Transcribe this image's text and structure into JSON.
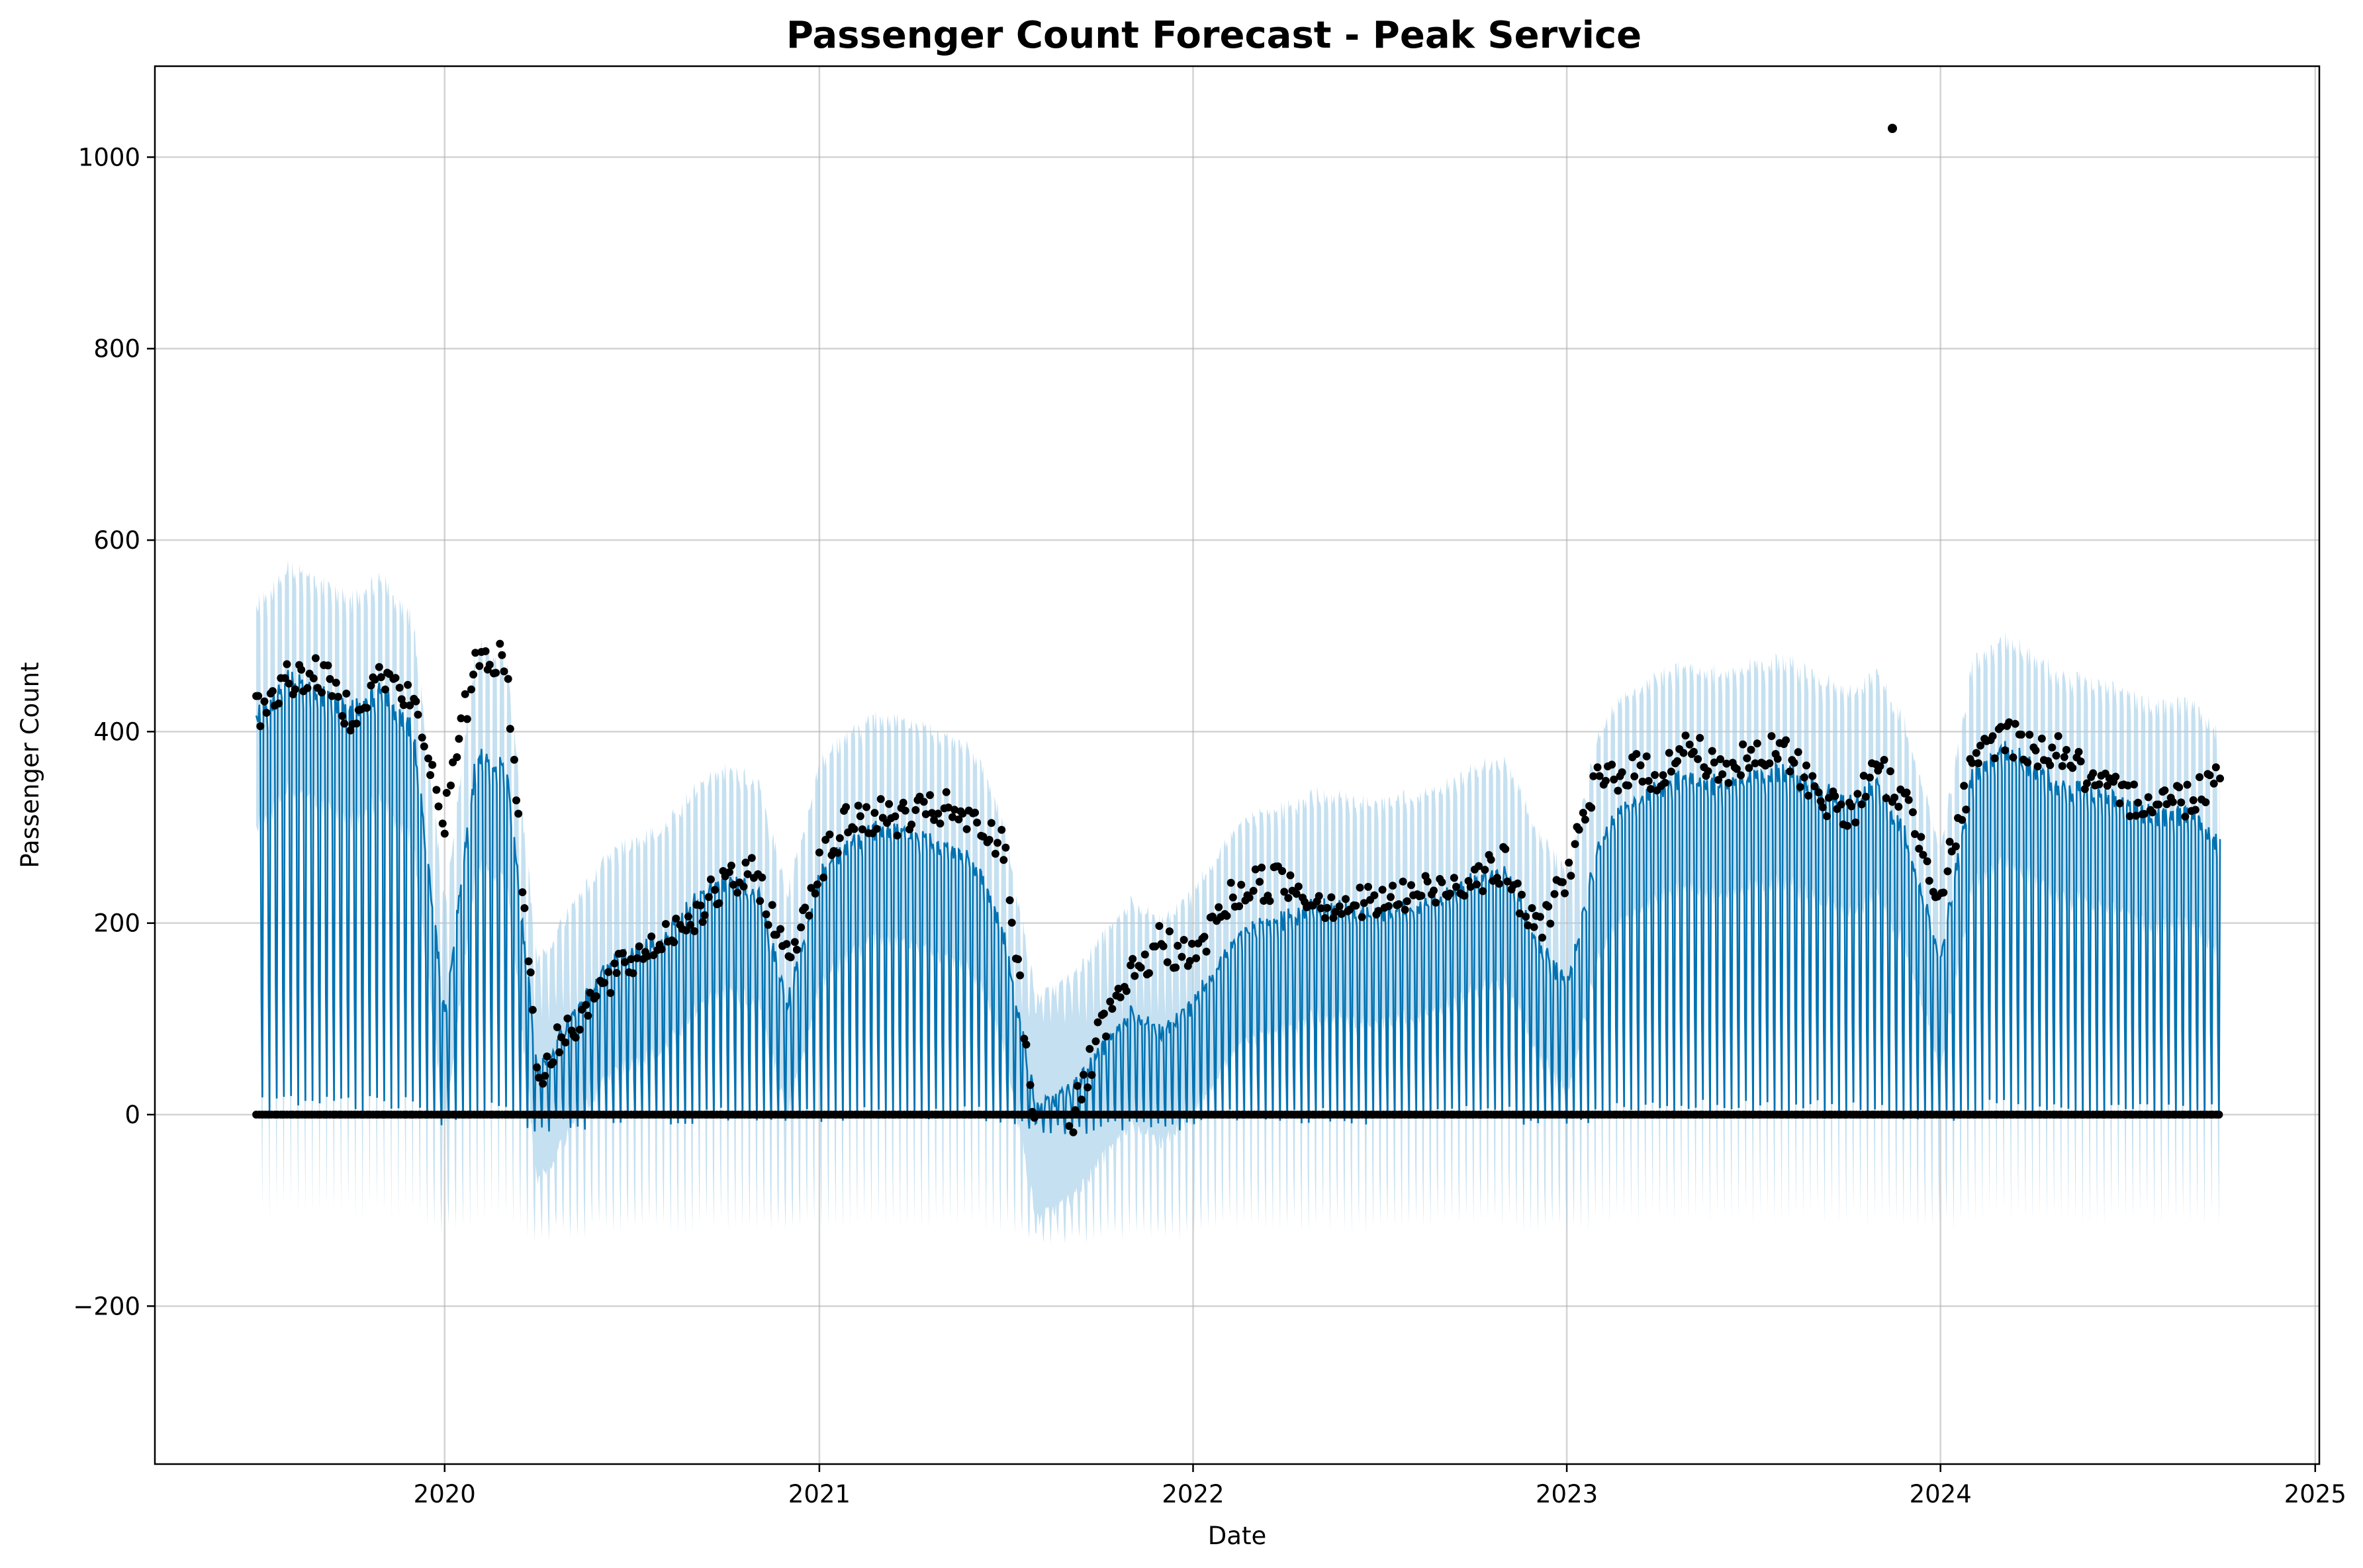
{
  "chart_data": {
    "type": "line",
    "title": "Passenger Count Forecast - Peak Service",
    "xlabel": "Date",
    "ylabel": "Passenger Count",
    "x_range": [
      "2019-03-24",
      "2025-01-05"
    ],
    "ylim": [
      -365,
      1095
    ],
    "x_ticks": [
      "2020-01-01",
      "2021-01-01",
      "2022-01-01",
      "2023-01-01",
      "2024-01-01",
      "2025-01-01"
    ],
    "x_tick_labels": [
      "2020",
      "2021",
      "2022",
      "2023",
      "2024",
      "2025"
    ],
    "y_ticks": [
      -200,
      0,
      200,
      400,
      600,
      800,
      1000
    ],
    "y_tick_labels": [
      "−200",
      "0",
      "200",
      "400",
      "600",
      "800",
      "1000"
    ],
    "grid": true,
    "legend": "none",
    "data_start": "2019-07-01",
    "data_end": "2024-09-30",
    "colors": {
      "forecast_line": "#0072B2",
      "interval_band": "#A6CFE8",
      "observed_points": "#000000",
      "grid": "#b0b0b0"
    },
    "series": [
      {
        "name": "forecast_weekday_level",
        "kind": "monthly",
        "x": [
          "2019-07-01",
          "2019-08-01",
          "2019-09-01",
          "2019-10-01",
          "2019-11-01",
          "2019-12-01",
          "2020-01-01",
          "2020-02-01",
          "2020-03-01",
          "2020-04-01",
          "2020-05-01",
          "2020-06-01",
          "2020-07-01",
          "2020-08-01",
          "2020-09-01",
          "2020-10-01",
          "2020-11-01",
          "2020-12-01",
          "2021-01-01",
          "2021-02-01",
          "2021-03-01",
          "2021-04-01",
          "2021-05-01",
          "2021-06-01",
          "2021-07-01",
          "2021-08-01",
          "2021-09-01",
          "2021-10-01",
          "2021-11-01",
          "2021-12-01",
          "2022-01-01",
          "2022-02-01",
          "2022-03-01",
          "2022-04-01",
          "2022-05-01",
          "2022-06-01",
          "2022-07-01",
          "2022-08-01",
          "2022-09-01",
          "2022-10-01",
          "2022-11-01",
          "2022-12-01",
          "2023-01-01",
          "2023-02-01",
          "2023-03-01",
          "2023-04-01",
          "2023-05-01",
          "2023-06-01",
          "2023-07-01",
          "2023-08-01",
          "2023-09-01",
          "2023-10-01",
          "2023-11-01",
          "2023-12-01",
          "2024-01-01",
          "2024-02-01",
          "2024-03-01",
          "2024-04-01",
          "2024-05-01",
          "2024-06-01",
          "2024-07-01",
          "2024-08-01",
          "2024-09-01",
          "2024-09-30"
        ],
        "values": [
          430,
          475,
          460,
          440,
          460,
          420,
          120,
          390,
          380,
          60,
          110,
          160,
          185,
          200,
          240,
          260,
          250,
          130,
          270,
          300,
          320,
          310,
          300,
          280,
          200,
          20,
          40,
          80,
          120,
          100,
          130,
          190,
          210,
          220,
          235,
          230,
          225,
          235,
          240,
          260,
          270,
          200,
          150,
          300,
          340,
          360,
          370,
          360,
          370,
          375,
          360,
          340,
          360,
          300,
          180,
          370,
          400,
          380,
          360,
          350,
          340,
          330,
          330,
          300
        ]
      },
      {
        "name": "observed_weekday",
        "kind": "monthly",
        "x": [
          "2019-07-01",
          "2019-08-01",
          "2019-09-01",
          "2019-10-01",
          "2019-11-01",
          "2019-12-01",
          "2020-01-01",
          "2020-02-01",
          "2020-03-01",
          "2020-04-01",
          "2020-05-01",
          "2020-06-01",
          "2020-07-01",
          "2020-08-01",
          "2020-09-01",
          "2020-10-01",
          "2020-11-01",
          "2020-12-01",
          "2021-01-01",
          "2021-02-01",
          "2021-03-01",
          "2021-04-01",
          "2021-05-01",
          "2021-06-01",
          "2021-07-01",
          "2021-08-01",
          "2021-09-01",
          "2021-10-01",
          "2021-11-01",
          "2021-12-01",
          "2022-01-01",
          "2022-02-01",
          "2022-03-01",
          "2022-04-01",
          "2022-05-01",
          "2022-06-01",
          "2022-07-01",
          "2022-08-01",
          "2022-09-01",
          "2022-10-01",
          "2022-11-01",
          "2022-12-01",
          "2023-01-01",
          "2023-02-01",
          "2023-03-01",
          "2023-04-01",
          "2023-05-01",
          "2023-06-01",
          "2023-07-01",
          "2023-08-01",
          "2023-09-01",
          "2023-10-01",
          "2023-11-01",
          "2023-12-01",
          "2024-01-01",
          "2024-02-01",
          "2024-03-01",
          "2024-04-01",
          "2024-05-01",
          "2024-06-01",
          "2024-07-01",
          "2024-08-01",
          "2024-09-01",
          "2024-09-30"
        ],
        "values": [
          440,
          475,
          480,
          440,
          480,
          450,
          330,
          500,
          495,
          60,
          110,
          150,
          180,
          205,
          230,
          260,
          270,
          180,
          280,
          330,
          330,
          330,
          340,
          320,
          300,
          0,
          0,
          100,
          160,
          200,
          180,
          240,
          260,
          265,
          245,
          240,
          240,
          250,
          255,
          270,
          280,
          210,
          270,
          370,
          380,
          375,
          405,
          380,
          390,
          400,
          360,
          330,
          380,
          340,
          250,
          380,
          420,
          400,
          400,
          360,
          350,
          350,
          350,
          380
        ]
      },
      {
        "name": "observed_zero_days",
        "kind": "scatter",
        "value": 0,
        "from": "2019-07-01",
        "to": "2024-09-30"
      },
      {
        "name": "observed_outlier",
        "kind": "scatter",
        "x": [
          "2023-11-15"
        ],
        "values": [
          1030
        ]
      }
    ]
  }
}
